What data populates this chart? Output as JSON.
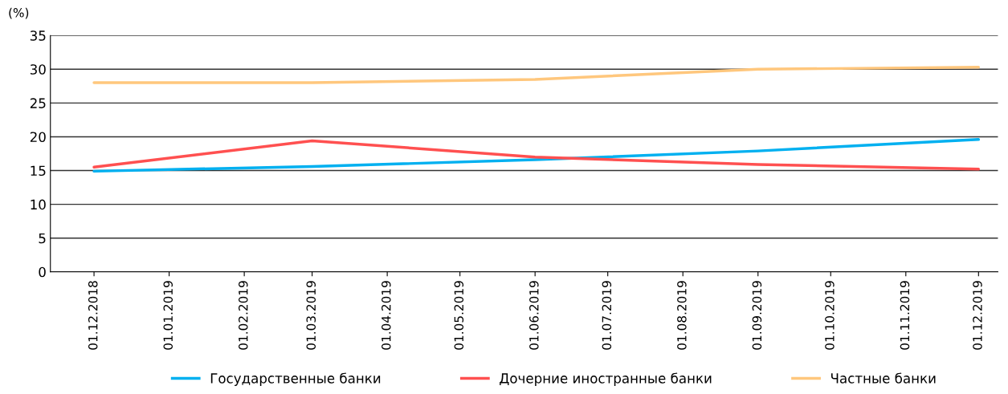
{
  "chart_data": {
    "type": "line",
    "ylabel": "(%)",
    "xlim": [
      "2018-11-13",
      "2019-12-09"
    ],
    "ylim": [
      0,
      35
    ],
    "yticks": [
      0,
      5,
      10,
      15,
      20,
      25,
      30,
      35
    ],
    "xticks": [
      {
        "value": "2018-12-01",
        "label": "01.12.2018"
      },
      {
        "value": "2019-01-01",
        "label": "01.01.2019"
      },
      {
        "value": "2019-02-01",
        "label": "01.02.2019"
      },
      {
        "value": "2019-03-01",
        "label": "01.03.2019"
      },
      {
        "value": "2019-04-01",
        "label": "01.04.2019"
      },
      {
        "value": "2019-05-01",
        "label": "01.05.2019"
      },
      {
        "value": "2019-06-01",
        "label": "01.06.2019"
      },
      {
        "value": "2019-07-01",
        "label": "01.07.2019"
      },
      {
        "value": "2019-08-01",
        "label": "01.08.2019"
      },
      {
        "value": "2019-09-01",
        "label": "01.09.2019"
      },
      {
        "value": "2019-10-01",
        "label": "01.10.2019"
      },
      {
        "value": "2019-11-01",
        "label": "01.11.2019"
      },
      {
        "value": "2019-12-01",
        "label": "01.12.2019"
      }
    ],
    "x": [
      "2018-12-01",
      "2019-03-01",
      "2019-06-01",
      "2019-09-01",
      "2019-12-01"
    ],
    "series": [
      {
        "name": "Государственные банки",
        "color": "#00b0f0",
        "values": [
          14.9,
          15.6,
          16.6,
          17.9,
          19.6
        ]
      },
      {
        "name": "Дочерние иностранные банки",
        "color": "#ff5050",
        "values": [
          15.5,
          19.4,
          17.0,
          15.9,
          15.2
        ]
      },
      {
        "name": "Частные банки",
        "color": "#ffc77d",
        "values": [
          28.0,
          28.0,
          28.5,
          30.0,
          30.3
        ]
      }
    ],
    "grid": "y",
    "legend": "bottom",
    "marker": "none",
    "line_style": "solid"
  }
}
